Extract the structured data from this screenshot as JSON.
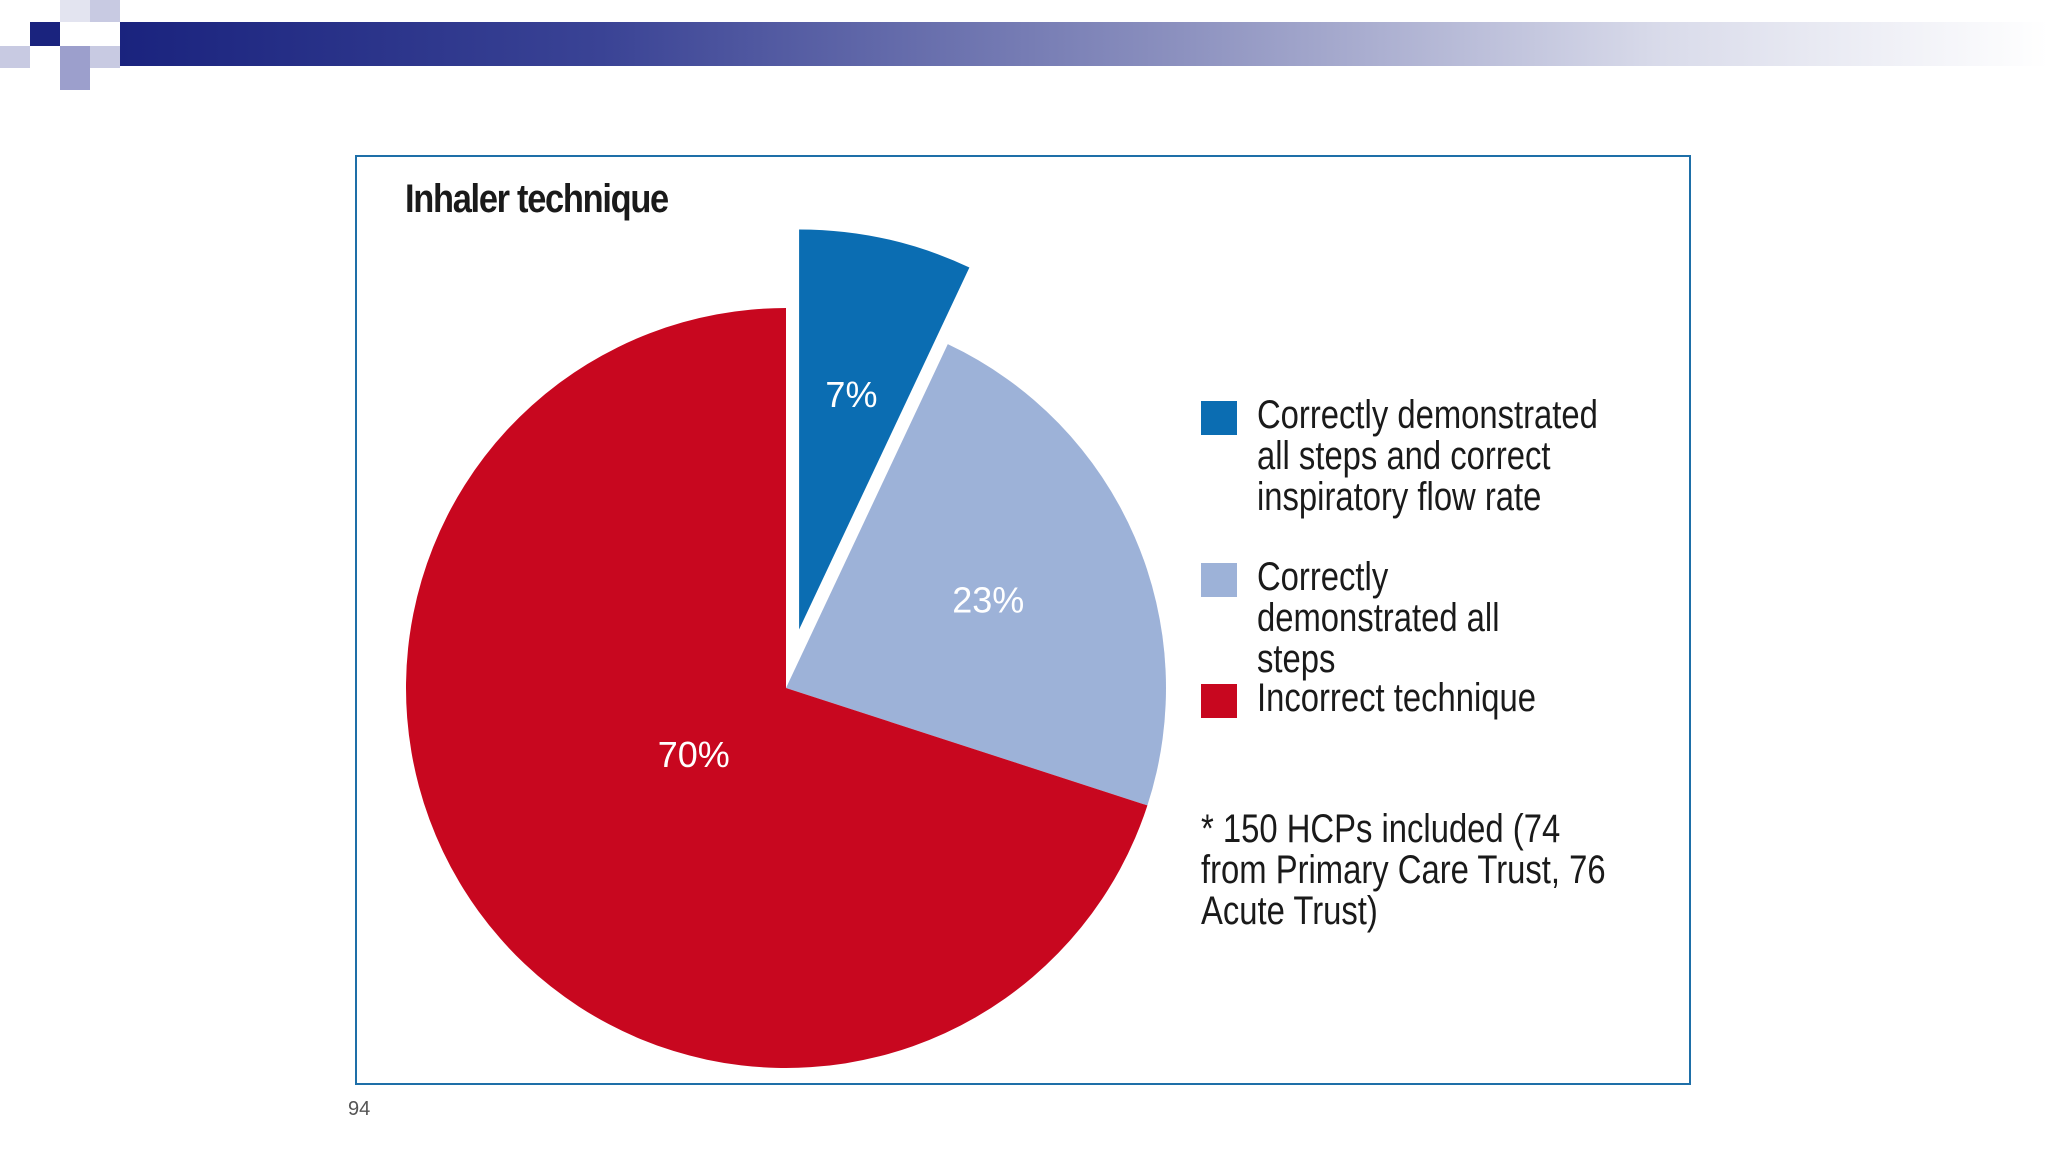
{
  "slide": {
    "page_number": "94"
  },
  "colors": {
    "header_dark": "#1a237e",
    "frame_border": "#1e6fa8",
    "correct_all_flow": "#0b6db2",
    "correct_all_steps": "#9db2d8",
    "incorrect": "#c8071f"
  },
  "chart_data": {
    "type": "pie",
    "title": "Inhaler technique",
    "slices": [
      {
        "name": "Correctly demonstrated all steps and correct inspiratory flow rate",
        "value": 7,
        "label": "7%",
        "color": "#0b6db2",
        "exploded": true
      },
      {
        "name": "Correctly demonstrated all steps",
        "value": 23,
        "label": "23%",
        "color": "#9db2d8",
        "exploded": false
      },
      {
        "name": "Incorrect technique",
        "value": 70,
        "label": "70%",
        "color": "#c8071f",
        "exploded": false
      }
    ],
    "legend": {
      "placement": "right",
      "items": [
        "Correctly demonstrated all steps and correct inspiratory flow rate",
        "Correctly demonstrated all steps",
        "Incorrect technique"
      ]
    },
    "note": "* 150 HCPs included (74 from Primary Care Trust, 76 Acute Trust)"
  }
}
